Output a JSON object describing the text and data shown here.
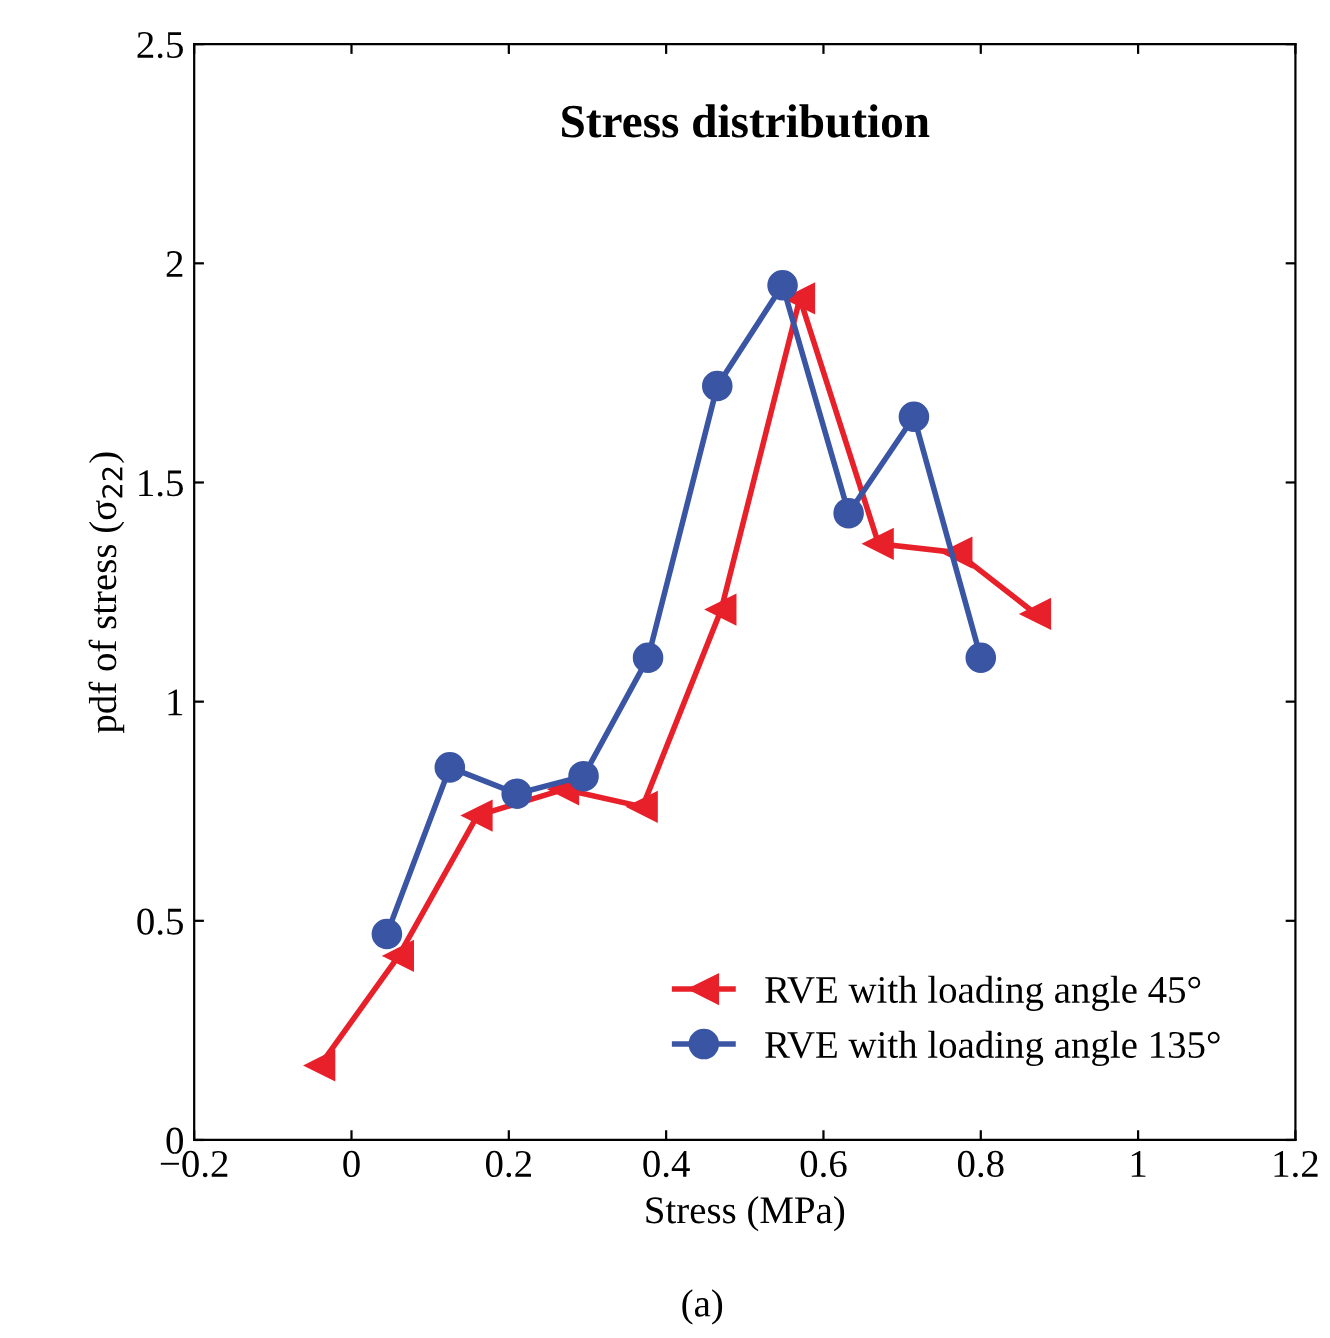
{
  "chart_data": {
    "type": "line",
    "title": "Stress distribution",
    "xlabel": "Stress (MPa)",
    "ylabel": "pdf of stress (σ$_{22}$)",
    "annotations": [
      "(a)"
    ],
    "series": [
      {
        "name": "RVE with loading angle 45°",
        "color": "#e8202a",
        "marker": "triangle",
        "x": [
          -0.04,
          0.06,
          0.16,
          0.27,
          0.37,
          0.47,
          0.57,
          0.67,
          0.77,
          0.87
        ],
        "values": [
          0.17,
          0.42,
          0.74,
          0.8,
          0.76,
          1.21,
          1.92,
          1.36,
          1.34,
          1.2
        ]
      },
      {
        "name": "RVE with loading angle 135°",
        "color": "#3a55a4",
        "marker": "circle",
        "x": [
          0.045,
          0.125,
          0.21,
          0.295,
          0.377,
          0.465,
          0.548,
          0.632,
          0.715,
          0.8
        ],
        "values": [
          0.47,
          0.85,
          0.79,
          0.83,
          1.1,
          1.72,
          1.95,
          1.43,
          1.65,
          1.1
        ]
      }
    ],
    "xlim": [
      -0.2,
      1.2
    ],
    "xticks": [
      {
        "value": -0.2,
        "label": "−0.2"
      },
      0,
      0.2,
      0.4,
      0.6,
      0.8,
      1,
      1.2
    ],
    "ylim": [
      0,
      2.5
    ],
    "yticks": [
      0,
      0.5,
      1,
      1.5,
      2,
      2.5
    ],
    "grid": false,
    "legend": "bottom right",
    "line_style": "solid"
  }
}
